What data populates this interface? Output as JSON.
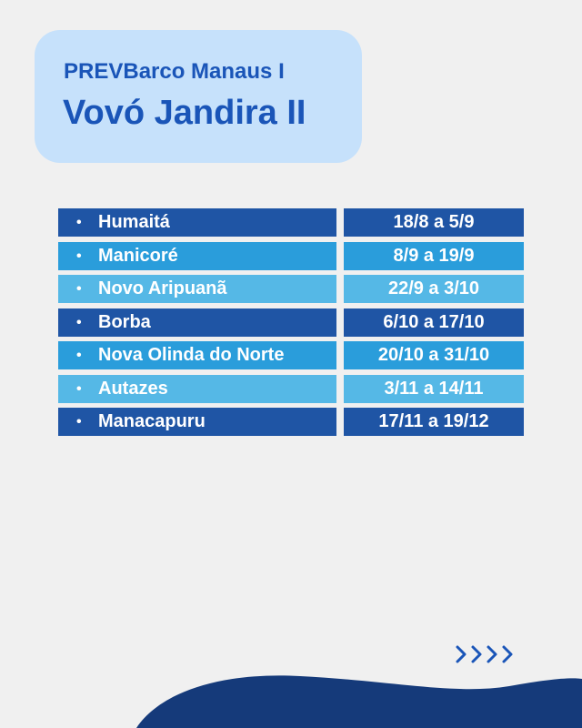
{
  "header": {
    "subtitle": "PREVBarco Manaus I",
    "title": "Vovó Jandira II"
  },
  "schedule": [
    {
      "place": "Humaitá",
      "dates": "18/8 a 5/9",
      "color": "#1f55a5"
    },
    {
      "place": "Manicoré",
      "dates": "8/9 a 19/9",
      "color": "#2a9ddb"
    },
    {
      "place": "Novo Aripuanã",
      "dates": "22/9 a 3/10",
      "color": "#55b8e6"
    },
    {
      "place": "Borba",
      "dates": "6/10 a 17/10",
      "color": "#1f55a5"
    },
    {
      "place": "Nova Olinda do Norte",
      "dates": "20/10 a 31/10",
      "color": "#2a9ddb"
    },
    {
      "place": "Autazes",
      "dates": "3/11 a 14/11",
      "color": "#55b8e6"
    },
    {
      "place": "Manacapuru",
      "dates": "17/11 a 19/12",
      "color": "#1f55a5"
    }
  ],
  "colors": {
    "background": "#f0f0f0",
    "title_card": "#c6e1fb",
    "title_text": "#1a55b8",
    "wave": "#153a7a",
    "arrows": "#1a55b8"
  },
  "icons": {
    "bullet": "•",
    "next": "chevrons-right-icon"
  }
}
